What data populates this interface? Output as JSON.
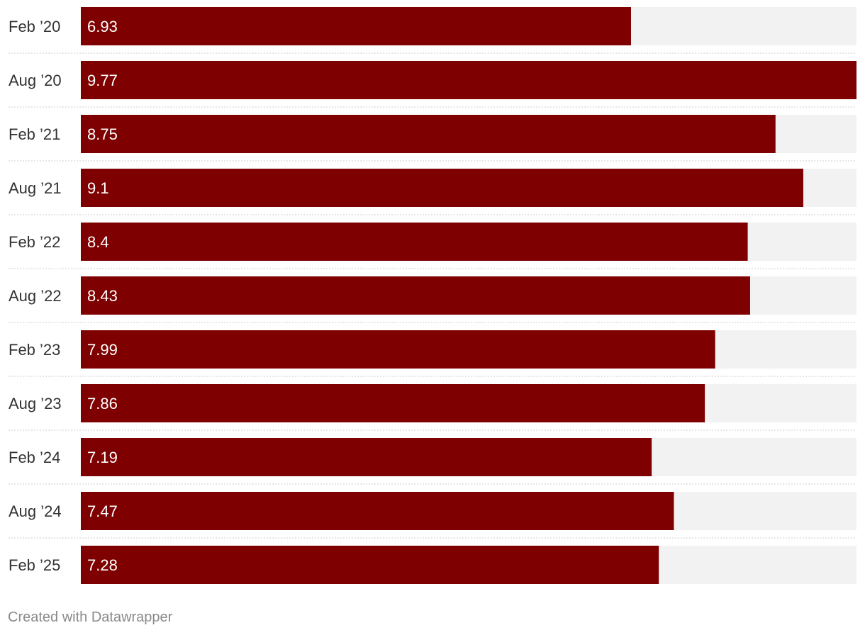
{
  "chart_data": {
    "type": "bar",
    "orientation": "horizontal",
    "categories": [
      "Feb ’20",
      "Aug ’20",
      "Feb ’21",
      "Aug ’21",
      "Feb ’22",
      "Aug ’22",
      "Feb ’23",
      "Aug ’23",
      "Feb ’24",
      "Aug ’24",
      "Feb ’25"
    ],
    "values": [
      6.93,
      9.77,
      8.75,
      9.1,
      8.4,
      8.43,
      7.99,
      7.86,
      7.19,
      7.47,
      7.28
    ],
    "value_labels": [
      "6.93",
      "9.77",
      "8.75",
      "9.1",
      "8.4",
      "8.43",
      "7.99",
      "7.86",
      "7.19",
      "7.47",
      "7.28"
    ],
    "xlim": [
      0,
      9.77
    ],
    "title": "",
    "xlabel": "",
    "ylabel": "",
    "grid": false,
    "legend": "none",
    "colors": {
      "bar": "#7f0000",
      "track": "#f2f2f2",
      "label": "#333333",
      "value_label": "#ffffff",
      "separator": "#cccccc"
    }
  },
  "footer": {
    "credit": "Created with Datawrapper"
  }
}
